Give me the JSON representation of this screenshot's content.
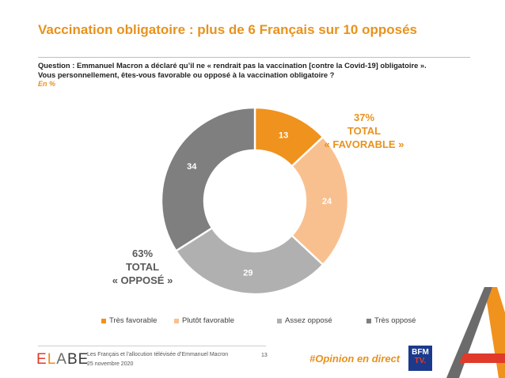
{
  "title": "Vaccination obligatoire : plus de 6 Français sur 10 opposés",
  "question_line1": "Question : Emmanuel Macron a déclaré qu’il ne « rendrait pas la vaccination [contre la Covid-19] obligatoire ».",
  "question_line2": "Vous personnellement, êtes-vous favorable ou opposé à la vaccination obligatoire ?",
  "unit": "En %",
  "total_favorable": {
    "line1": "37%",
    "line2": "TOTAL",
    "line3": "« FAVORABLE »"
  },
  "total_oppose": {
    "line1": "63%",
    "line2": "TOTAL",
    "line3": "« OPPOSÉ »"
  },
  "chart_data": {
    "type": "pie",
    "donut": true,
    "categories": [
      "Très favorable",
      "Plutôt favorable",
      "Assez opposé",
      "Très opposé"
    ],
    "values": [
      13,
      24,
      29,
      34
    ],
    "colors": [
      "#F0921E",
      "#F9C08F",
      "#B0B0B0",
      "#7F7F7F"
    ],
    "label_colors": [
      "#ffffff",
      "#ffffff",
      "#ffffff",
      "#ffffff"
    ],
    "legend_position": "bottom"
  },
  "footer": {
    "logo_parts": [
      "E",
      "L",
      "A",
      "B",
      "E"
    ],
    "source_line1": "Les Français et l’allocution télévisée d’Emmanuel Macron",
    "source_line2": "25 novembre 2020",
    "page": "13",
    "hashtag": "#Opinion en direct",
    "bfm_top": "BFM",
    "bfm_bottom": "TV."
  }
}
